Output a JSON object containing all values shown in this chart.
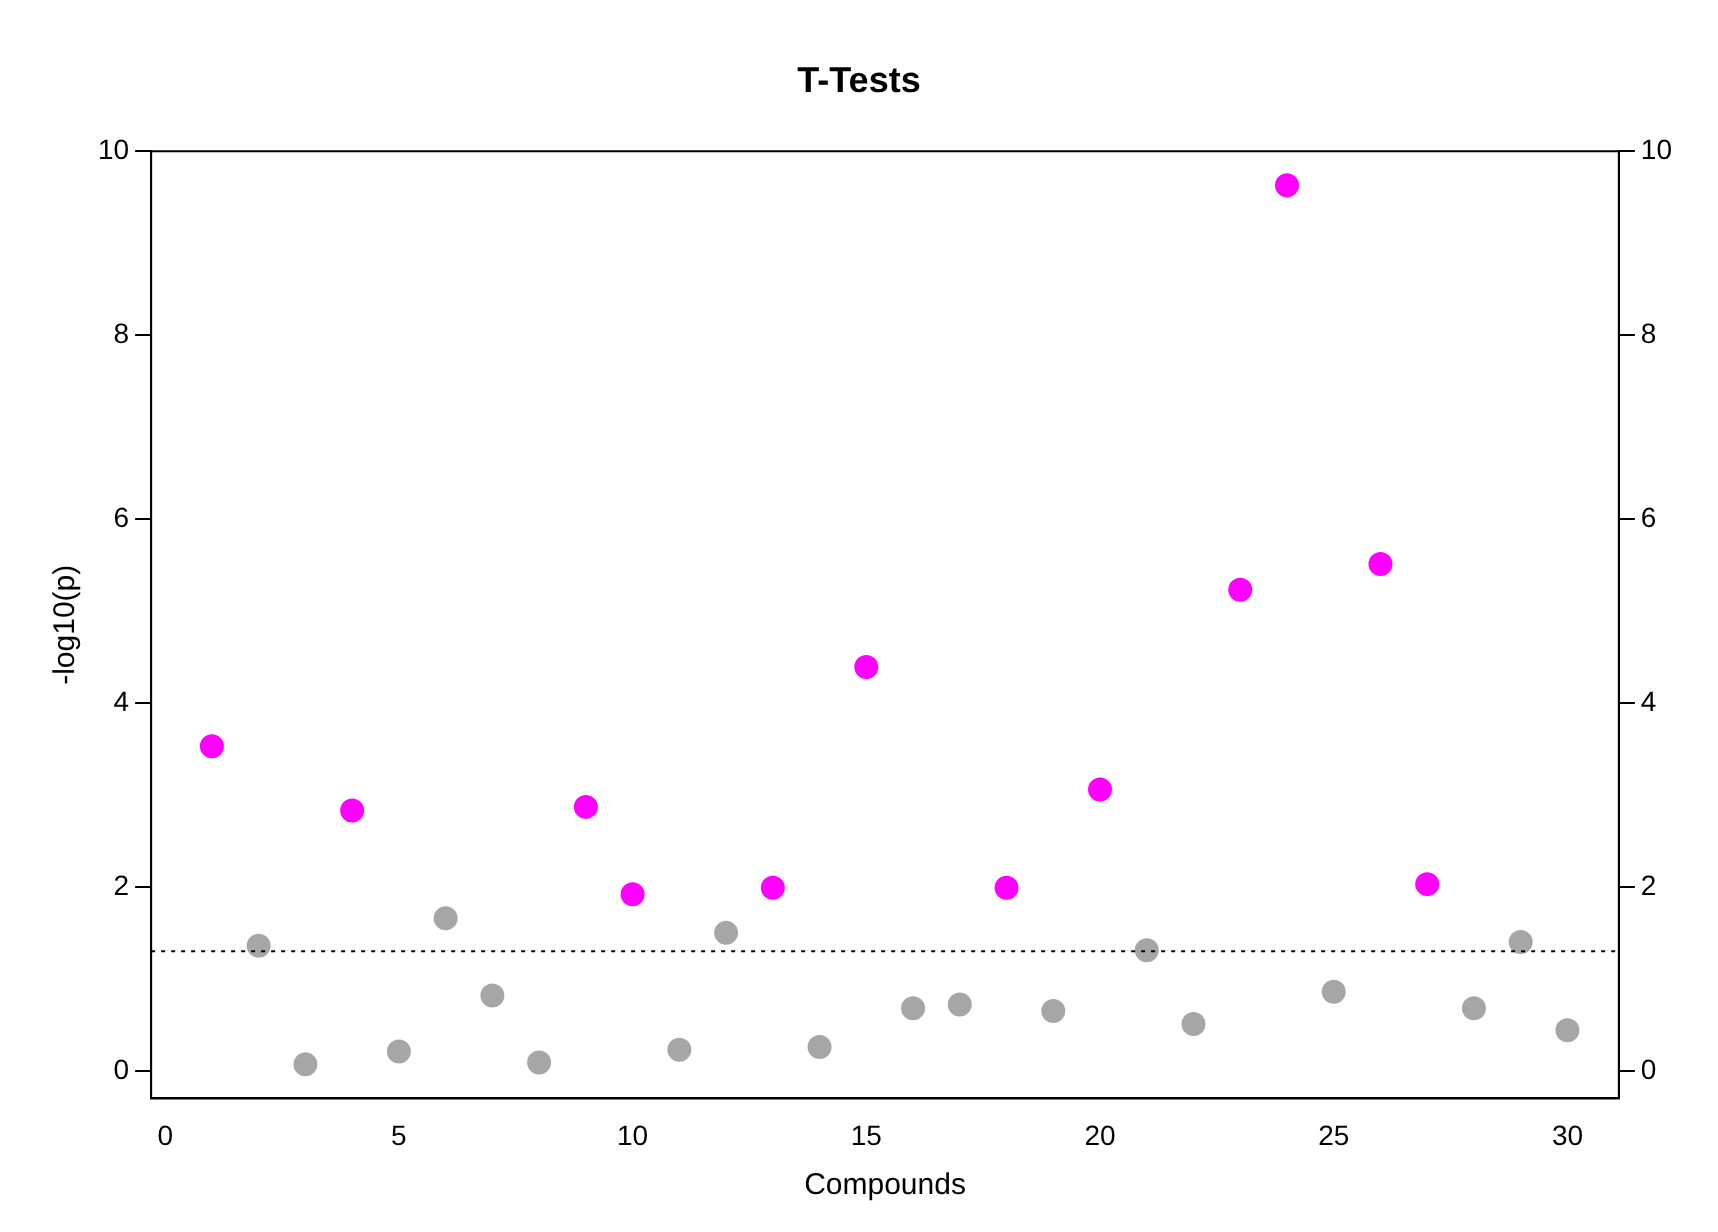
{
  "chart_data": {
    "type": "scatter",
    "title": "T-Tests",
    "xlabel": "Compounds",
    "ylabel": "-log10(p)",
    "x": [
      1,
      2,
      3,
      4,
      5,
      6,
      7,
      8,
      9,
      10,
      11,
      12,
      13,
      14,
      15,
      16,
      17,
      18,
      19,
      20,
      21,
      22,
      23,
      24,
      25,
      26,
      27,
      28,
      29,
      30
    ],
    "values": [
      3.53,
      1.36,
      0.07,
      2.83,
      0.21,
      1.66,
      0.82,
      0.09,
      2.87,
      1.92,
      0.23,
      1.5,
      1.99,
      0.26,
      4.39,
      0.68,
      0.72,
      1.99,
      0.65,
      3.06,
      1.31,
      0.51,
      5.23,
      9.63,
      0.86,
      5.51,
      2.03,
      0.68,
      1.4,
      0.44
    ],
    "colors": [
      "#ff00ff",
      "#a6a6a6",
      "#a6a6a6",
      "#ff00ff",
      "#a6a6a6",
      "#a6a6a6",
      "#a6a6a6",
      "#a6a6a6",
      "#ff00ff",
      "#ff00ff",
      "#a6a6a6",
      "#a6a6a6",
      "#ff00ff",
      "#a6a6a6",
      "#ff00ff",
      "#a6a6a6",
      "#a6a6a6",
      "#ff00ff",
      "#a6a6a6",
      "#ff00ff",
      "#a6a6a6",
      "#a6a6a6",
      "#ff00ff",
      "#ff00ff",
      "#a6a6a6",
      "#ff00ff",
      "#ff00ff",
      "#a6a6a6",
      "#a6a6a6",
      "#a6a6a6"
    ],
    "xlim": [
      -0.3,
      31.1
    ],
    "xticks": [
      0,
      5,
      10,
      15,
      20,
      25,
      30
    ],
    "ylim": [
      -0.3,
      10
    ],
    "yticks": [
      0,
      2,
      4,
      6,
      8,
      10
    ],
    "y2lim": [
      -0.3,
      10
    ],
    "y2ticks": [
      0,
      2,
      4,
      6,
      8,
      10
    ],
    "ref_lines": [
      {
        "axis": "y",
        "value": 1.3,
        "line_style": "dotted",
        "color": "#000000"
      }
    ],
    "marker": "circle",
    "grid": false,
    "legend": false
  }
}
